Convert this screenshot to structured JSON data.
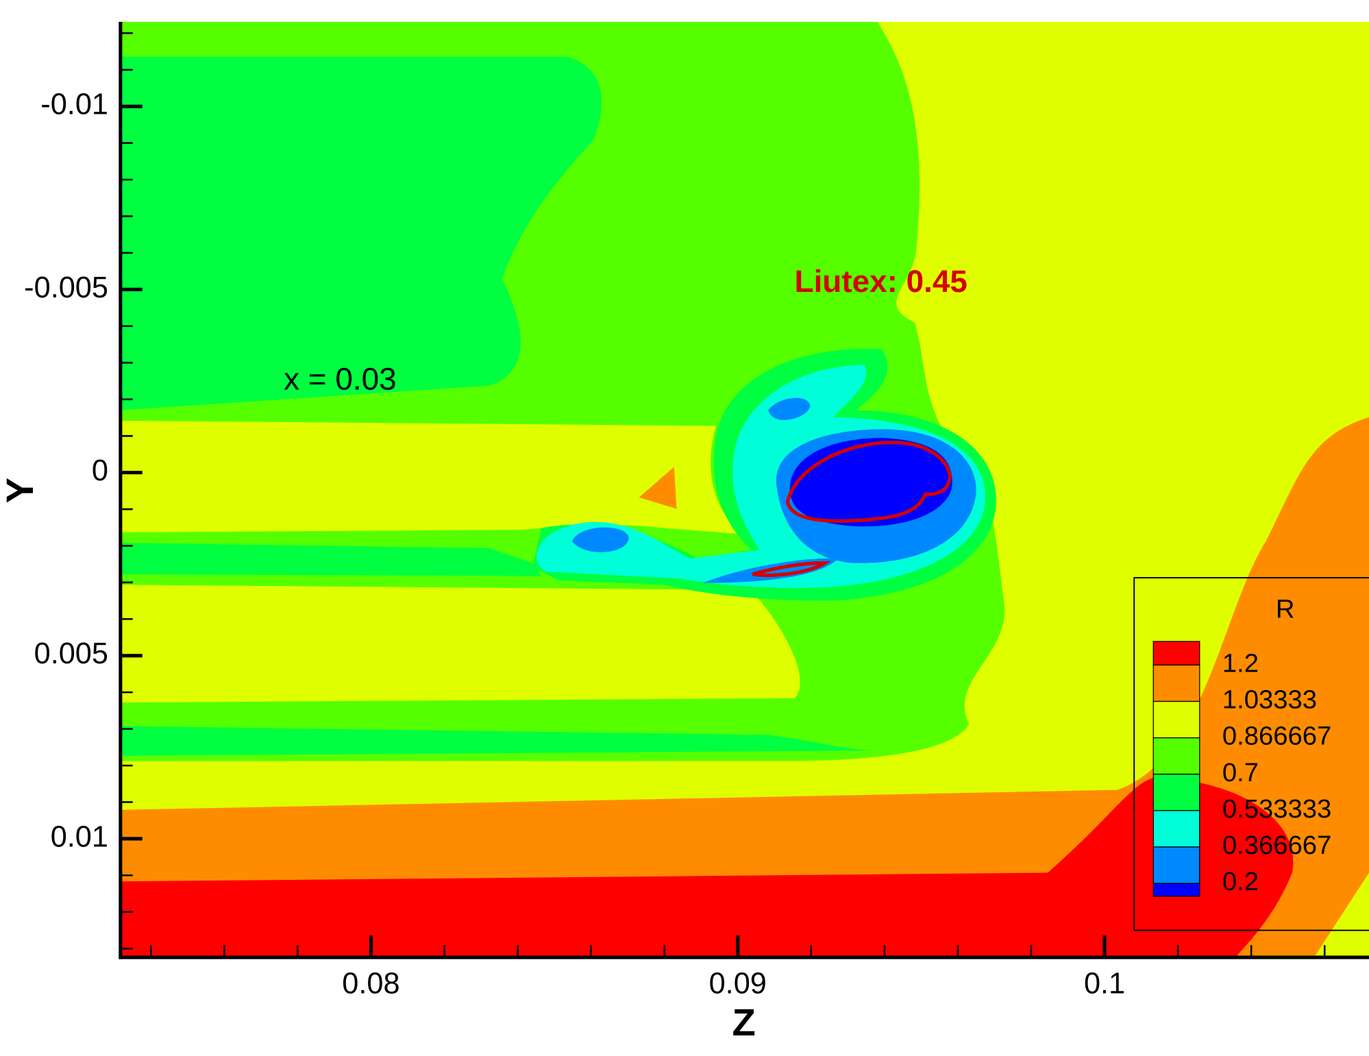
{
  "chart_data": {
    "type": "contour",
    "x_label": "Z",
    "y_label": "Y",
    "xlim": [
      0.07317,
      0.10721
    ],
    "ylim": [
      -0.01231,
      0.01324
    ],
    "y_inverted": true,
    "xticks": [
      0.08,
      0.09,
      0.1
    ],
    "yticks": [
      -0.01,
      -0.005,
      0,
      0.005,
      0.01
    ],
    "legend": {
      "title": "R",
      "levels": [
        1.2,
        1.03333,
        0.866667,
        0.7,
        0.533333,
        0.366667,
        0.2
      ],
      "band_colors": [
        "#ff0000",
        "#ff8c00",
        "#dfff00",
        "#55ff00",
        "#00ff40",
        "#00ffd8",
        "#0088ff",
        "#0000ff"
      ]
    },
    "annotations": [
      "x = 0.03",
      "Liutex: 0.45"
    ],
    "annotation_colors": [
      "#000000",
      "#d40000"
    ]
  }
}
